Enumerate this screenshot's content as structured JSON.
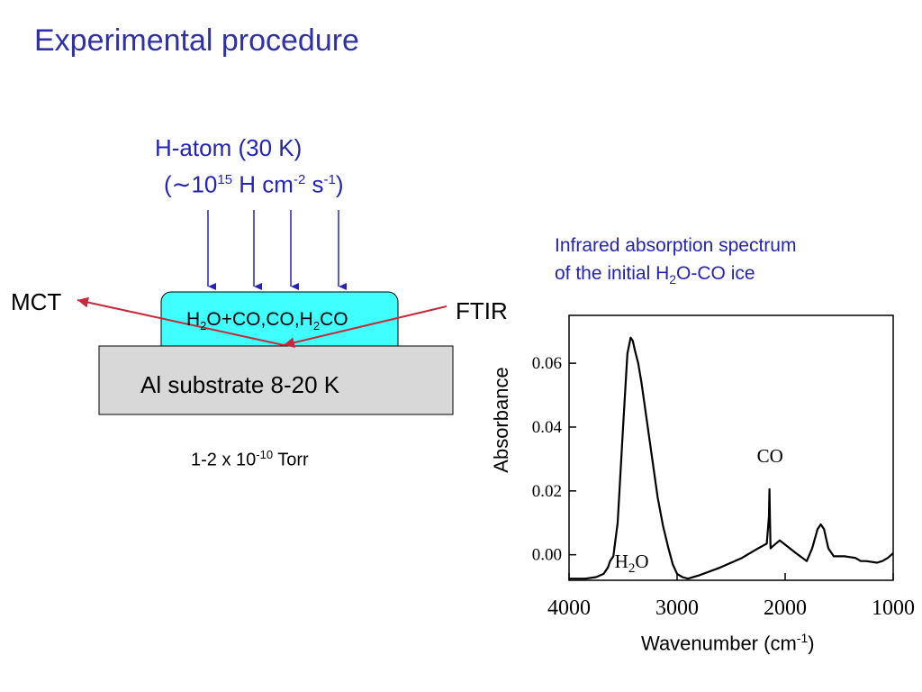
{
  "title": "Experimental procedure",
  "beam": {
    "line1": "H-atom (30 K)",
    "open": "(∼10",
    "exp15": "15",
    "unit": " H cm",
    "expm2": "-2",
    "s": " s",
    "expm1": "-1",
    "close": ")"
  },
  "ice": {
    "p1": "H",
    "s1": "2",
    "p2": "O+CO,CO,H",
    "s2": "2",
    "p3": "CO"
  },
  "substrate": "Al substrate 8-20 K",
  "mct": "MCT",
  "ftir": "FTIR",
  "pressure": {
    "base": "1-2 x 10",
    "exp": "-10",
    "unit": " Torr"
  },
  "spectrum_caption": {
    "line1": "Infrared absorption spectrum",
    "line2a": "of the initial H",
    "line2sub": "2",
    "line2b": "O-CO ice"
  },
  "chart_data": {
    "type": "line",
    "xlabel_base": "Wavenumber (cm",
    "xlabel_exp": "-1",
    "xlabel_close": ")",
    "ylabel": "Absorbance",
    "xlim": [
      4000,
      1000
    ],
    "ylim": [
      -0.008,
      0.075
    ],
    "xticks": [
      4000,
      3000,
      2000,
      1000
    ],
    "xtick_labels": [
      "4000",
      "3000",
      "2000",
      "1000"
    ],
    "yticks": [
      0.0,
      0.02,
      0.04,
      0.06
    ],
    "ytick_labels": [
      "0.00",
      "0.02",
      "0.04",
      "0.06"
    ],
    "annotations": [
      {
        "text": "H",
        "sub": "2",
        "text2": "O",
        "x": 3420,
        "y": -0.004
      },
      {
        "text": "CO",
        "x": 2140,
        "y": 0.029
      }
    ],
    "series": [
      {
        "x": [
          4000,
          3850,
          3750,
          3680,
          3640,
          3620,
          3590,
          3550,
          3500,
          3460,
          3430,
          3410,
          3390,
          3360,
          3330,
          3280,
          3230,
          3180,
          3130,
          3080,
          3040,
          3000,
          2950,
          2900,
          2800,
          2600,
          2400,
          2250,
          2170,
          2150,
          2145,
          2140,
          2135,
          2120,
          2050,
          1900,
          1800,
          1750,
          1700,
          1670,
          1640,
          1600,
          1550,
          1450,
          1350,
          1300,
          1250,
          1150,
          1100,
          1050,
          1000
        ],
        "y": [
          -0.0075,
          -0.0075,
          -0.007,
          -0.006,
          -0.004,
          -0.002,
          -0.0005,
          0.01,
          0.04,
          0.063,
          0.068,
          0.067,
          0.064,
          0.06,
          0.054,
          0.042,
          0.03,
          0.018,
          0.009,
          0.002,
          -0.003,
          -0.006,
          -0.007,
          -0.0075,
          -0.0065,
          -0.004,
          -0.001,
          0.002,
          0.0035,
          0.012,
          0.0205,
          0.01,
          0.002,
          0.0025,
          0.0045,
          0.0005,
          -0.002,
          0.002,
          0.008,
          0.0095,
          0.008,
          0.002,
          -0.0005,
          -0.0005,
          -0.001,
          -0.002,
          -0.002,
          -0.0025,
          -0.002,
          -0.001,
          0.0005
        ]
      }
    ]
  }
}
